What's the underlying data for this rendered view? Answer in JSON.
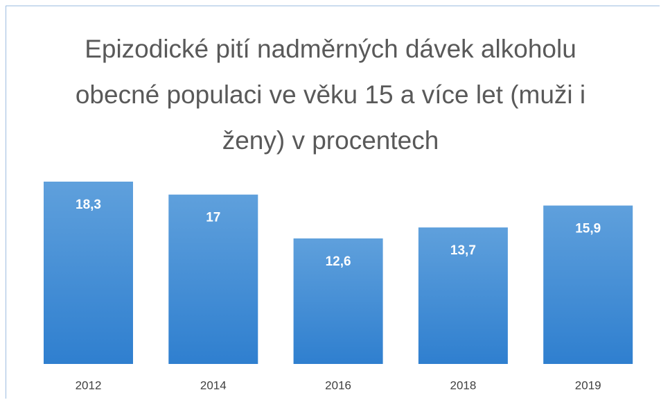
{
  "chart_data": {
    "type": "bar",
    "title": "Epizodické pití nadměrných dávek alkoholu obecné populaci ve věku 15 a více let (muži i ženy) v procentech",
    "categories": [
      "2012",
      "2014",
      "2016",
      "2018",
      "2019"
    ],
    "values": [
      18.3,
      17,
      12.6,
      13.7,
      15.9
    ],
    "value_labels": [
      "18,3",
      "17",
      "12,6",
      "13,7",
      "15,9"
    ],
    "color": "#4a8fd6"
  }
}
